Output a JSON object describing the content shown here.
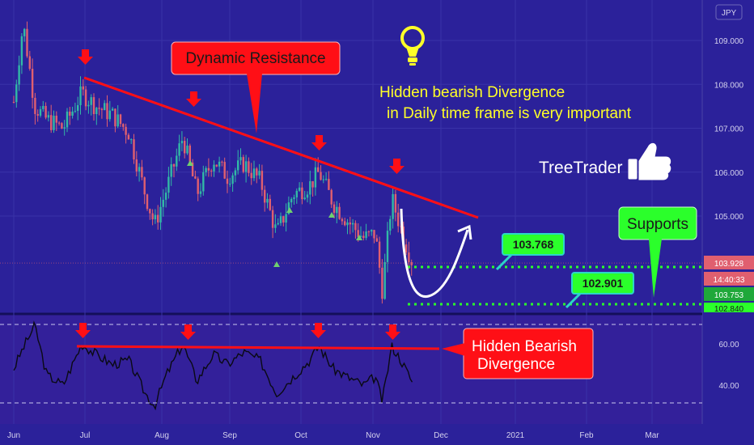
{
  "chart_data": [
    {
      "type": "candlestick",
      "currency": "JPY",
      "y_ticks": [
        "109.000",
        "108.000",
        "107.000",
        "106.000",
        "105.000"
      ],
      "ylim": [
        102.75,
        109.6
      ],
      "x_ticks": [
        "Jun",
        "Jul",
        "Aug",
        "Sep",
        "Oct",
        "Nov",
        "Dec",
        "2021",
        "Feb",
        "Mar"
      ],
      "series": [
        {
          "date": "2020-06-01",
          "close": 107.6
        },
        {
          "date": "2020-06-05",
          "close": 109.4
        },
        {
          "date": "2020-06-10",
          "close": 107.5
        },
        {
          "date": "2020-06-15",
          "close": 107.2
        },
        {
          "date": "2020-06-22",
          "close": 107.0
        },
        {
          "date": "2020-06-30",
          "close": 107.8
        },
        {
          "date": "2020-07-06",
          "close": 107.5
        },
        {
          "date": "2020-07-13",
          "close": 107.3
        },
        {
          "date": "2020-07-20",
          "close": 106.9
        },
        {
          "date": "2020-07-27",
          "close": 105.5
        },
        {
          "date": "2020-07-31",
          "close": 104.8
        },
        {
          "date": "2020-08-05",
          "close": 105.6
        },
        {
          "date": "2020-08-12",
          "close": 106.8
        },
        {
          "date": "2020-08-18",
          "close": 105.5
        },
        {
          "date": "2020-08-25",
          "close": 106.3
        },
        {
          "date": "2020-08-31",
          "close": 105.9
        },
        {
          "date": "2020-09-07",
          "close": 106.2
        },
        {
          "date": "2020-09-14",
          "close": 105.8
        },
        {
          "date": "2020-09-21",
          "close": 104.6
        },
        {
          "date": "2020-09-28",
          "close": 105.5
        },
        {
          "date": "2020-10-05",
          "close": 105.7
        },
        {
          "date": "2020-10-09",
          "close": 106.0
        },
        {
          "date": "2020-10-15",
          "close": 105.3
        },
        {
          "date": "2020-10-21",
          "close": 104.9
        },
        {
          "date": "2020-10-28",
          "close": 104.5
        },
        {
          "date": "2020-11-02",
          "close": 104.6
        },
        {
          "date": "2020-11-05",
          "close": 103.3
        },
        {
          "date": "2020-11-09",
          "close": 105.4
        },
        {
          "date": "2020-11-13",
          "close": 104.7
        },
        {
          "date": "2020-11-18",
          "close": 103.9
        }
      ]
    },
    {
      "type": "line",
      "y_ticks": [
        "60.00",
        "40.00"
      ],
      "ylim": [
        28,
        75
      ],
      "dashed_levels": [
        70,
        30
      ],
      "series": [
        {
          "date": "2020-06-01",
          "value": 48
        },
        {
          "date": "2020-06-05",
          "value": 58
        },
        {
          "date": "2020-06-10",
          "value": 69
        },
        {
          "date": "2020-06-15",
          "value": 45
        },
        {
          "date": "2020-06-22",
          "value": 40
        },
        {
          "date": "2020-06-30",
          "value": 60
        },
        {
          "date": "2020-07-06",
          "value": 55
        },
        {
          "date": "2020-07-13",
          "value": 50
        },
        {
          "date": "2020-07-20",
          "value": 52
        },
        {
          "date": "2020-07-27",
          "value": 36
        },
        {
          "date": "2020-07-31",
          "value": 30
        },
        {
          "date": "2020-08-05",
          "value": 45
        },
        {
          "date": "2020-08-12",
          "value": 60
        },
        {
          "date": "2020-08-18",
          "value": 42
        },
        {
          "date": "2020-08-25",
          "value": 55
        },
        {
          "date": "2020-08-31",
          "value": 50
        },
        {
          "date": "2020-09-07",
          "value": 56
        },
        {
          "date": "2020-09-14",
          "value": 52
        },
        {
          "date": "2020-09-21",
          "value": 36
        },
        {
          "date": "2020-09-28",
          "value": 44
        },
        {
          "date": "2020-10-05",
          "value": 52
        },
        {
          "date": "2020-10-09",
          "value": 59
        },
        {
          "date": "2020-10-15",
          "value": 48
        },
        {
          "date": "2020-10-21",
          "value": 44
        },
        {
          "date": "2020-10-28",
          "value": 40
        },
        {
          "date": "2020-11-02",
          "value": 44
        },
        {
          "date": "2020-11-05",
          "value": 32
        },
        {
          "date": "2020-11-09",
          "value": 59
        },
        {
          "date": "2020-11-13",
          "value": 52
        },
        {
          "date": "2020-11-18",
          "value": 41
        }
      ]
    }
  ],
  "price_labels": {
    "last": "103.928",
    "countdown": "14:40:33",
    "bid": "103.753",
    "partial": "102.840"
  },
  "annotations": {
    "dynamic_resistance": "Dynamic Resistance",
    "hidden_bearish_line1": "Hidden bearish Divergence",
    "hidden_bearish_line2": "in Daily time frame is very important",
    "tree_trader": "TreeTrader",
    "supports": "Supports",
    "level_1": "103.768",
    "level_2": "102.901",
    "osc_label_line1": "Hidden Bearish",
    "osc_label_line2": "Divergence"
  },
  "colors": {
    "background": "#2b219a",
    "oscillator_bg": "#33209a",
    "bull": "#31b9a6",
    "bear": "#e05f6f",
    "annotation_red": "#ff0f16",
    "support_green": "#2bff2b",
    "label_text": "#ffff28"
  },
  "icons": [
    "lightbulb-icon",
    "thumbs-up-icon",
    "down-arrow-icon"
  ]
}
